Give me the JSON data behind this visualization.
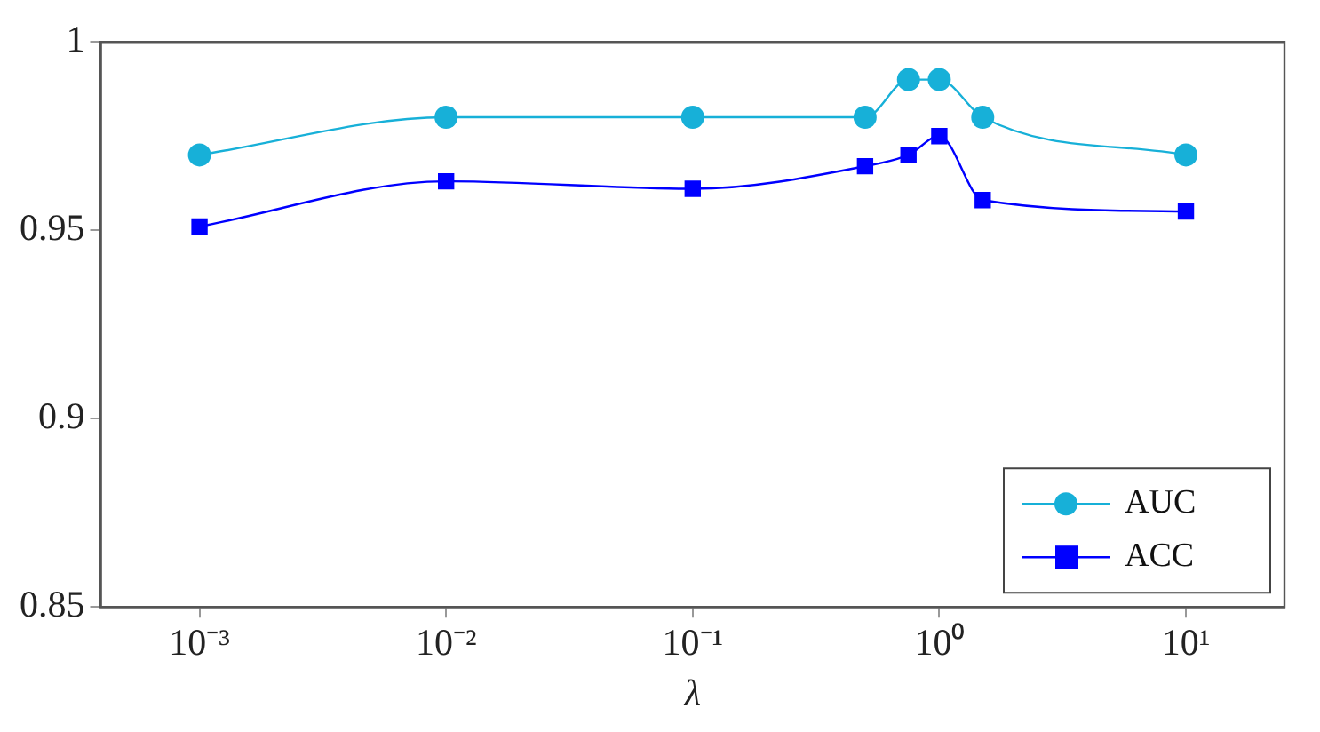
{
  "chart_data": {
    "type": "line",
    "xlabel": "λ",
    "x": [
      0.001,
      0.01,
      0.1,
      0.5,
      0.75,
      1,
      1.5,
      10
    ],
    "series": [
      {
        "name": "AUC",
        "color": "#17b0d8",
        "marker": "circle",
        "values": [
          0.97,
          0.98,
          0.98,
          0.98,
          0.99,
          0.99,
          0.98,
          0.97
        ]
      },
      {
        "name": "ACC",
        "color": "#0000ff",
        "marker": "square",
        "values": [
          0.951,
          0.963,
          0.961,
          0.967,
          0.97,
          0.975,
          0.958,
          0.955
        ]
      }
    ],
    "log": "x",
    "xlim": [
      0.000398,
      25.1
    ],
    "xticks": [
      {
        "value": 0.001,
        "label": "10⁻³"
      },
      {
        "value": 0.01,
        "label": "10⁻²"
      },
      {
        "value": 0.1,
        "label": "10⁻¹"
      },
      {
        "value": 1,
        "label": "10⁰"
      },
      {
        "value": 10,
        "label": "10¹"
      }
    ],
    "ylim": [
      0.85,
      1
    ],
    "yticks": [
      0.85,
      0.9,
      0.95,
      1
    ],
    "grid": false,
    "legend": "bottom right"
  }
}
